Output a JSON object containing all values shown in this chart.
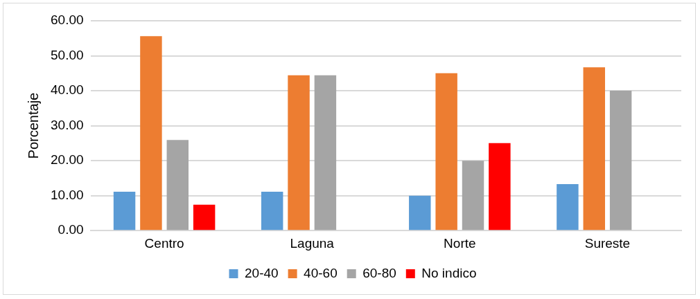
{
  "chart_data": {
    "type": "bar",
    "ylabel": "Porcentaje",
    "categories": [
      "Centro",
      "Laguna",
      "Norte",
      "Sureste"
    ],
    "series": [
      {
        "name": "20-40",
        "color": "#5b9bd5",
        "values": [
          11.1,
          11.1,
          10,
          13.3
        ]
      },
      {
        "name": "40-60",
        "color": "#ed7d31",
        "values": [
          55.6,
          44.4,
          45,
          46.7
        ]
      },
      {
        "name": "60-80",
        "color": "#a5a5a5",
        "values": [
          25.9,
          44.4,
          20,
          40
        ]
      },
      {
        "name": "No indico",
        "color": "#ff0000",
        "values": [
          7.4,
          null,
          25,
          null
        ]
      }
    ],
    "ylim": [
      0,
      60
    ],
    "yticks": [
      {
        "value": 0,
        "label": "0.00"
      },
      {
        "value": 10,
        "label": "10.00"
      },
      {
        "value": 20,
        "label": "20.00"
      },
      {
        "value": 30,
        "label": "30.00"
      },
      {
        "value": 40,
        "label": "40.00"
      },
      {
        "value": 50,
        "label": "50.00"
      },
      {
        "value": 60,
        "label": "60.00"
      }
    ],
    "grid": "y",
    "legend": "bottom"
  }
}
